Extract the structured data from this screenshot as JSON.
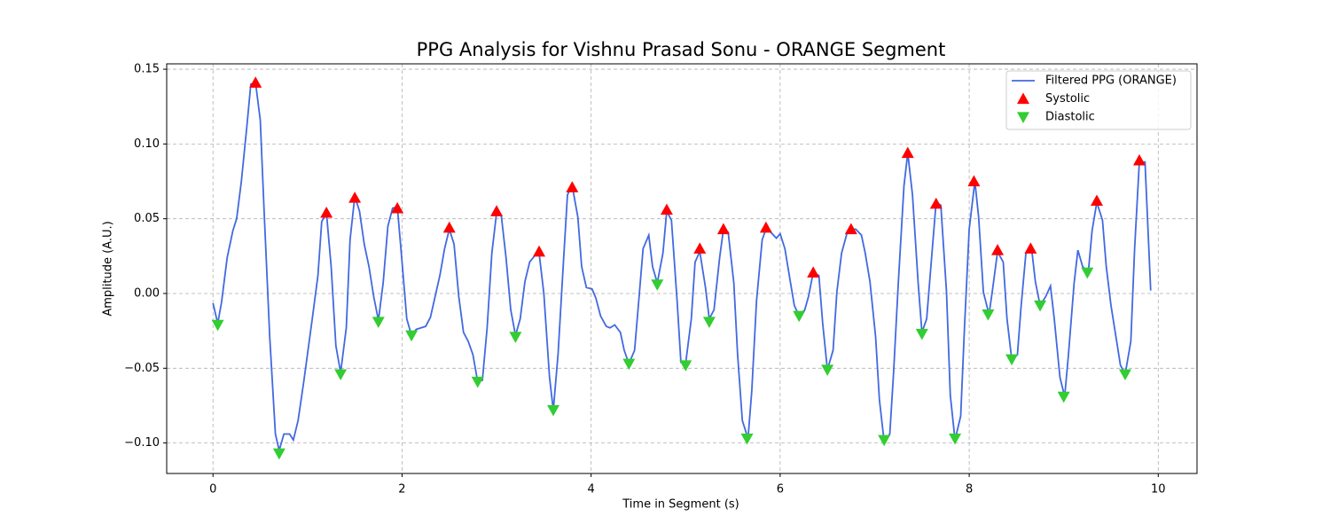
{
  "chart_data": {
    "type": "line",
    "title": "PPG Analysis for Vishnu Prasad Sonu - ORANGE Segment",
    "x_label": "Time in Segment (s)",
    "y_label": "Amplitude (A.U.)",
    "xlim": [
      -0.49,
      10.41
    ],
    "ylim": [
      -0.1204,
      0.1536
    ],
    "xticks": [
      0,
      2,
      4,
      6,
      8,
      10
    ],
    "yticks": [
      {
        "value": -0.1,
        "label": "−0.10"
      },
      {
        "value": -0.05,
        "label": "−0.05"
      },
      {
        "value": 0,
        "label": "0.00"
      },
      {
        "value": 0.05,
        "label": "0.05"
      },
      {
        "value": 0.1,
        "label": "0.10"
      },
      {
        "value": 0.15,
        "label": "0.15"
      }
    ],
    "grid": true,
    "legend": "upper right",
    "series": [
      {
        "name": "Filtered PPG (ORANGE)",
        "color": "#4169e1",
        "style": "line",
        "x": [
          0,
          0.05,
          0.09,
          0.15,
          0.21,
          0.25,
          0.3,
          0.36,
          0.4,
          0.45,
          0.5,
          0.54,
          0.6,
          0.66,
          0.7,
          0.75,
          0.81,
          0.85,
          0.9,
          0.96,
          1.05,
          1.11,
          1.15,
          1.2,
          1.25,
          1.3,
          1.35,
          1.41,
          1.45,
          1.5,
          1.55,
          1.6,
          1.65,
          1.7,
          1.75,
          1.8,
          1.85,
          1.9,
          1.95,
          2.0,
          2.05,
          2.1,
          2.15,
          2.2,
          2.25,
          2.3,
          2.35,
          2.4,
          2.45,
          2.5,
          2.55,
          2.6,
          2.65,
          2.7,
          2.75,
          2.8,
          2.85,
          2.9,
          2.95,
          3.0,
          3.05,
          3.1,
          3.15,
          3.2,
          3.25,
          3.3,
          3.35,
          3.4,
          3.45,
          3.5,
          3.56,
          3.6,
          3.65,
          3.71,
          3.75,
          3.8,
          3.86,
          3.9,
          3.95,
          4.01,
          4.05,
          4.1,
          4.16,
          4.2,
          4.25,
          4.31,
          4.35,
          4.4,
          4.46,
          4.5,
          4.55,
          4.61,
          4.65,
          4.7,
          4.76,
          4.8,
          4.85,
          4.91,
          4.95,
          5.0,
          5.06,
          5.1,
          5.15,
          5.21,
          5.25,
          5.3,
          5.36,
          5.4,
          5.45,
          5.51,
          5.55,
          5.6,
          5.66,
          5.7,
          5.75,
          5.81,
          5.85,
          5.9,
          5.96,
          6.0,
          6.05,
          6.11,
          6.15,
          6.2,
          6.26,
          6.3,
          6.35,
          6.41,
          6.45,
          6.5,
          6.56,
          6.6,
          6.65,
          6.71,
          6.75,
          6.8,
          6.86,
          6.9,
          6.95,
          7.01,
          7.05,
          7.1,
          7.16,
          7.2,
          7.25,
          7.31,
          7.35,
          7.4,
          7.46,
          7.5,
          7.55,
          7.61,
          7.65,
          7.7,
          7.76,
          7.8,
          7.85,
          7.91,
          7.95,
          8.0,
          8.06,
          8.1,
          8.15,
          8.21,
          8.25,
          8.3,
          8.36,
          8.4,
          8.45,
          8.51,
          8.55,
          8.6,
          8.66,
          8.7,
          8.75,
          8.81,
          8.86,
          8.9,
          8.96,
          9.01,
          9.05,
          9.11,
          9.15,
          9.2,
          9.26,
          9.3,
          9.35,
          9.41,
          9.45,
          9.5,
          9.56,
          9.6,
          9.65,
          9.71,
          9.75,
          9.8,
          9.86,
          9.92
        ],
        "values": [
          -0.0065,
          -0.02,
          -0.006,
          0.024,
          0.042,
          0.05,
          0.075,
          0.113,
          0.14,
          0.141,
          0.116,
          0.056,
          -0.029,
          -0.094,
          -0.105,
          -0.094,
          -0.094,
          -0.098,
          -0.085,
          -0.059,
          -0.017,
          0.012,
          0.048,
          0.054,
          0.018,
          -0.035,
          -0.053,
          -0.023,
          0.036,
          0.065,
          0.055,
          0.033,
          0.018,
          -0.002,
          -0.018,
          0.007,
          0.045,
          0.057,
          0.058,
          0.021,
          -0.017,
          -0.028,
          -0.024,
          -0.023,
          -0.022,
          -0.016,
          -0.002,
          0.012,
          0.03,
          0.043,
          0.033,
          -0.002,
          -0.026,
          -0.032,
          -0.041,
          -0.059,
          -0.058,
          -0.023,
          0.027,
          0.054,
          0.052,
          0.024,
          -0.011,
          -0.028,
          -0.017,
          0.008,
          0.021,
          0.025,
          0.027,
          0.0,
          -0.056,
          -0.078,
          -0.041,
          0.024,
          0.066,
          0.072,
          0.051,
          0.018,
          0.004,
          0.003,
          -0.003,
          -0.015,
          -0.022,
          -0.023,
          -0.021,
          -0.026,
          -0.038,
          -0.047,
          -0.038,
          -0.008,
          0.03,
          0.039,
          0.018,
          0.007,
          0.027,
          0.055,
          0.049,
          -0.005,
          -0.046,
          -0.047,
          -0.017,
          0.021,
          0.028,
          0.004,
          -0.017,
          -0.011,
          0.024,
          0.043,
          0.041,
          0.007,
          -0.041,
          -0.085,
          -0.097,
          -0.065,
          -0.005,
          0.036,
          0.043,
          0.041,
          0.037,
          0.04,
          0.03,
          0.007,
          -0.008,
          -0.015,
          -0.011,
          -0.002,
          0.014,
          0.012,
          -0.02,
          -0.051,
          -0.038,
          0.001,
          0.027,
          0.041,
          0.043,
          0.043,
          0.039,
          0.027,
          0.008,
          -0.029,
          -0.071,
          -0.099,
          -0.094,
          -0.053,
          0.007,
          0.072,
          0.094,
          0.066,
          0.007,
          -0.026,
          -0.017,
          0.03,
          0.061,
          0.059,
          0.001,
          -0.068,
          -0.098,
          -0.082,
          -0.023,
          0.043,
          0.075,
          0.051,
          0.001,
          -0.014,
          0.004,
          0.028,
          0.021,
          -0.017,
          -0.044,
          -0.041,
          -0.008,
          0.027,
          0.03,
          0.008,
          -0.008,
          -0.002,
          0.005,
          -0.017,
          -0.056,
          -0.069,
          -0.041,
          0.007,
          0.029,
          0.018,
          0.014,
          0.042,
          0.061,
          0.049,
          0.018,
          -0.008,
          -0.032,
          -0.048,
          -0.054,
          -0.032,
          0.03,
          0.088,
          0.088,
          0.002
        ]
      },
      {
        "name": "Systolic",
        "color": "#ff0000",
        "style": "triangle-up",
        "x": [
          0.45,
          1.2,
          1.5,
          1.95,
          2.5,
          3.0,
          3.45,
          3.8,
          4.8,
          5.15,
          5.4,
          5.85,
          6.35,
          6.75,
          7.35,
          7.65,
          8.05,
          8.3,
          8.65,
          9.35,
          9.8
        ],
        "values": [
          0.141,
          0.054,
          0.064,
          0.057,
          0.044,
          0.055,
          0.028,
          0.071,
          0.056,
          0.03,
          0.043,
          0.044,
          0.014,
          0.043,
          0.094,
          0.06,
          0.075,
          0.029,
          0.03,
          0.062,
          0.089
        ]
      },
      {
        "name": "Diastolic",
        "color": "#32cd32",
        "style": "triangle-down",
        "x": [
          0.05,
          0.7,
          1.35,
          1.75,
          2.1,
          2.8,
          3.2,
          3.6,
          4.4,
          4.7,
          5.0,
          5.25,
          5.65,
          6.2,
          6.5,
          7.1,
          7.5,
          7.85,
          8.2,
          8.45,
          8.75,
          9.0,
          9.25,
          9.65
        ],
        "values": [
          -0.021,
          -0.107,
          -0.054,
          -0.019,
          -0.028,
          -0.059,
          -0.029,
          -0.078,
          -0.047,
          0.006,
          -0.048,
          -0.019,
          -0.097,
          -0.015,
          -0.051,
          -0.098,
          -0.027,
          -0.097,
          -0.014,
          -0.044,
          -0.008,
          -0.069,
          0.014,
          -0.054
        ]
      }
    ]
  }
}
